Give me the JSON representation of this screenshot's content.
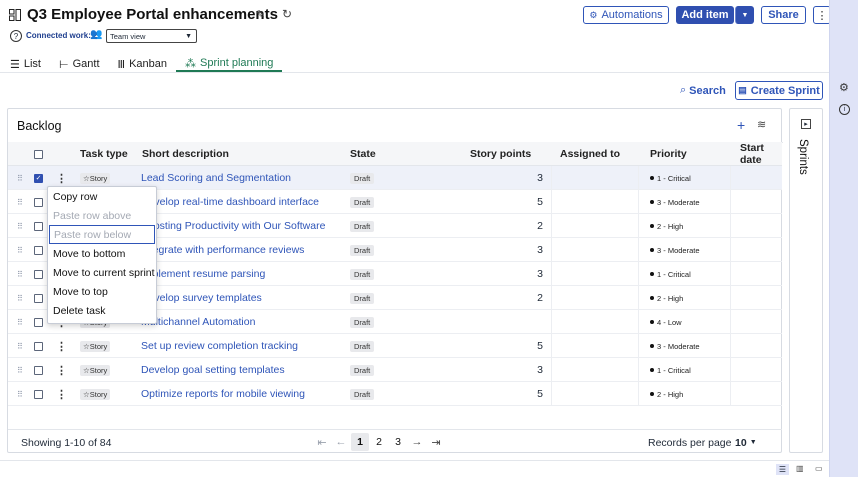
{
  "header": {
    "title": "Q3 Employee Portal enhancements",
    "connected_work": "Connected work: 2",
    "view_select": "Team view",
    "automations_label": "Automations",
    "add_item_label": "Add item",
    "share_label": "Share"
  },
  "tabs": [
    {
      "label": "List"
    },
    {
      "label": "Gantt"
    },
    {
      "label": "Kanban"
    },
    {
      "label": "Sprint planning"
    }
  ],
  "toolbar": {
    "search_label": "Search",
    "create_sprint_label": "Create Sprint"
  },
  "backlog": {
    "title": "Backlog",
    "columns": {
      "task_type": "Task type",
      "short_description": "Short description",
      "state": "State",
      "story_points": "Story points",
      "assigned_to": "Assigned to",
      "priority": "Priority",
      "start_date": "Start date"
    },
    "rows": [
      {
        "type": "Story",
        "desc": "Lead Scoring and Segmentation",
        "state": "Draft",
        "points": "3",
        "priority": "1 - Critical"
      },
      {
        "type": "Story",
        "desc": "Develop real-time dashboard interface",
        "state": "Draft",
        "points": "5",
        "priority": "3 - Moderate"
      },
      {
        "type": "Story",
        "desc": "Boosting Productivity with Our Software",
        "state": "Draft",
        "points": "2",
        "priority": "2 - High"
      },
      {
        "type": "Story",
        "desc": "Integrate with performance reviews",
        "state": "Draft",
        "points": "3",
        "priority": "3 - Moderate"
      },
      {
        "type": "Story",
        "desc": "Implement resume parsing",
        "state": "Draft",
        "points": "3",
        "priority": "1 - Critical"
      },
      {
        "type": "Story",
        "desc": "Develop survey templates",
        "state": "Draft",
        "points": "2",
        "priority": "2 - High"
      },
      {
        "type": "Story",
        "desc": "Multichannel Automation",
        "state": "Draft",
        "points": "",
        "priority": "4 - Low"
      },
      {
        "type": "Story",
        "desc": "Set up review completion tracking",
        "state": "Draft",
        "points": "5",
        "priority": "3 - Moderate"
      },
      {
        "type": "Story",
        "desc": "Develop goal setting templates",
        "state": "Draft",
        "points": "3",
        "priority": "1 - Critical"
      },
      {
        "type": "Story",
        "desc": "Optimize reports for mobile viewing",
        "state": "Draft",
        "points": "5",
        "priority": "2 - High"
      }
    ],
    "footer": {
      "showing": "Showing 1-10 of 84",
      "pages": [
        "1",
        "2",
        "3"
      ],
      "records_label": "Records per page",
      "records_value": "10"
    }
  },
  "context_menu": {
    "items": [
      {
        "label": "Copy row",
        "disabled": false
      },
      {
        "label": "Paste row above",
        "disabled": true
      },
      {
        "label": "Paste row below",
        "disabled": true
      },
      {
        "label": "Move to bottom",
        "disabled": false
      },
      {
        "label": "Move to current sprint",
        "disabled": false
      },
      {
        "label": "Move to top",
        "disabled": false
      },
      {
        "label": "Delete task",
        "disabled": false
      }
    ]
  },
  "sprints_panel": {
    "title": "Sprints"
  },
  "colors": {
    "accent": "#2f55b8",
    "active_tab": "#1f7a55",
    "rail": "#dfe3f7"
  }
}
